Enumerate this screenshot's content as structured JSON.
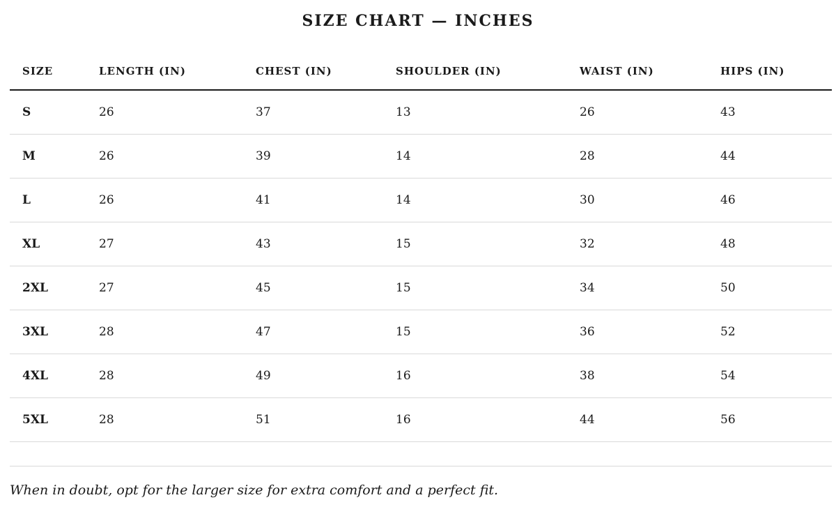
{
  "title": "SIZE CHART — INCHES",
  "table": {
    "columns": [
      "SIZE",
      "LENGTH (IN)",
      "CHEST (IN)",
      "SHOULDER (IN)",
      "WAIST (IN)",
      "HIPS (IN)"
    ],
    "rows": [
      [
        "S",
        "26",
        "37",
        "13",
        "26",
        "43"
      ],
      [
        "M",
        "26",
        "39",
        "14",
        "28",
        "44"
      ],
      [
        "L",
        "26",
        "41",
        "14",
        "30",
        "46"
      ],
      [
        "XL",
        "27",
        "43",
        "15",
        "32",
        "48"
      ],
      [
        "2XL",
        "27",
        "45",
        "15",
        "34",
        "50"
      ],
      [
        "3XL",
        "28",
        "47",
        "15",
        "36",
        "52"
      ],
      [
        "4XL",
        "28",
        "49",
        "16",
        "38",
        "54"
      ],
      [
        "5XL",
        "28",
        "51",
        "16",
        "44",
        "56"
      ]
    ]
  },
  "note": "When in doubt, opt for the larger size for extra comfort and a perfect fit."
}
